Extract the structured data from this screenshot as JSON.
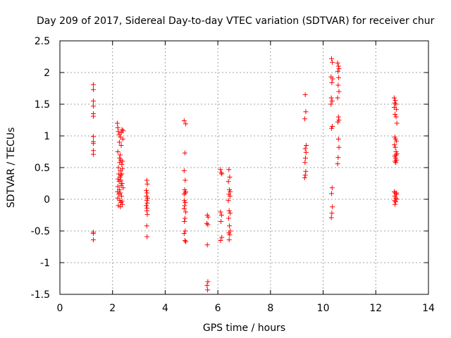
{
  "chart_data": {
    "type": "scatter",
    "title": "Day 209 of 2017, Sidereal Day-to-day VTEC variation (SDTVAR) for receiver chur",
    "xlabel": "GPS time / hours",
    "ylabel": "SDTVAR / TECUs",
    "xlim": [
      0,
      14
    ],
    "ylim": [
      -1.5,
      2.5
    ],
    "x_ticks": [
      0,
      2,
      4,
      6,
      8,
      10,
      12,
      14
    ],
    "y_ticks": [
      -1.5,
      -1,
      -0.5,
      0,
      0.5,
      1,
      1.5,
      2,
      2.5
    ],
    "x_tick_labels": [
      "0",
      "2",
      "4",
      "6",
      "8",
      "10",
      "12",
      "14"
    ],
    "y_tick_labels": [
      "-1.5",
      "-1",
      "-0.5",
      "0",
      "0.5",
      "1",
      "1.5",
      "2",
      "2.5"
    ],
    "grid": true,
    "marker": "+",
    "marker_color": "#ff0000",
    "series": [
      {
        "name": "SDTVAR",
        "points": [
          [
            1.27,
            1.81
          ],
          [
            1.27,
            1.73
          ],
          [
            1.27,
            1.55
          ],
          [
            1.27,
            1.47
          ],
          [
            1.27,
            1.35
          ],
          [
            1.27,
            1.31
          ],
          [
            1.27,
            0.99
          ],
          [
            1.27,
            0.91
          ],
          [
            1.27,
            0.88
          ],
          [
            1.27,
            0.77
          ],
          [
            1.27,
            0.71
          ],
          [
            1.27,
            -0.52
          ],
          [
            1.27,
            -0.54
          ],
          [
            1.27,
            -0.64
          ],
          [
            2.18,
            1.2
          ],
          [
            2.2,
            1.13
          ],
          [
            2.22,
            1.07
          ],
          [
            2.25,
            1.02
          ],
          [
            2.3,
            0.98
          ],
          [
            2.33,
            1.05
          ],
          [
            2.36,
            1.1
          ],
          [
            2.4,
            1.08
          ],
          [
            2.26,
            0.9
          ],
          [
            2.33,
            0.85
          ],
          [
            2.2,
            0.75
          ],
          [
            2.27,
            0.65
          ],
          [
            2.31,
            0.62
          ],
          [
            2.35,
            0.55
          ],
          [
            2.22,
            0.5
          ],
          [
            2.3,
            0.45
          ],
          [
            2.37,
            0.48
          ],
          [
            2.24,
            0.4
          ],
          [
            2.28,
            0.35
          ],
          [
            2.32,
            0.3
          ],
          [
            2.36,
            0.25
          ],
          [
            2.2,
            0.2
          ],
          [
            2.26,
            0.15
          ],
          [
            2.3,
            0.1
          ],
          [
            2.34,
            0.05
          ],
          [
            2.2,
            0.02
          ],
          [
            2.27,
            -0.02
          ],
          [
            2.32,
            -0.05
          ],
          [
            2.37,
            -0.08
          ],
          [
            2.22,
            -0.1
          ],
          [
            2.3,
            -0.12
          ],
          [
            2.35,
            0.4
          ],
          [
            2.38,
            0.6
          ],
          [
            2.25,
            0.28
          ],
          [
            2.4,
            0.18
          ],
          [
            2.21,
            0.32
          ],
          [
            2.29,
            0.7
          ],
          [
            2.33,
            0.22
          ],
          [
            2.24,
            0.08
          ],
          [
            2.36,
            -0.03
          ],
          [
            2.19,
            0.12
          ],
          [
            2.31,
            0.38
          ],
          [
            2.27,
            0.58
          ],
          [
            2.39,
            0.95
          ],
          [
            3.3,
            0.3
          ],
          [
            3.32,
            0.24
          ],
          [
            3.28,
            0.14
          ],
          [
            3.31,
            0.1
          ],
          [
            3.29,
            0.05
          ],
          [
            3.33,
            0.02
          ],
          [
            3.3,
            -0.02
          ],
          [
            3.32,
            -0.06
          ],
          [
            3.28,
            -0.1
          ],
          [
            3.31,
            -0.14
          ],
          [
            3.3,
            -0.18
          ],
          [
            3.32,
            -0.24
          ],
          [
            3.3,
            -0.42
          ],
          [
            3.31,
            -0.59
          ],
          [
            4.72,
            1.24
          ],
          [
            4.78,
            1.19
          ],
          [
            4.75,
            0.73
          ],
          [
            4.72,
            0.45
          ],
          [
            4.76,
            0.3
          ],
          [
            4.74,
            0.15
          ],
          [
            4.78,
            0.12
          ],
          [
            4.72,
            0.08
          ],
          [
            4.77,
            0.1
          ],
          [
            4.73,
            -0.02
          ],
          [
            4.76,
            -0.05
          ],
          [
            4.74,
            -0.1
          ],
          [
            4.72,
            -0.15
          ],
          [
            4.78,
            -0.2
          ],
          [
            4.75,
            -0.3
          ],
          [
            4.73,
            -0.35
          ],
          [
            4.76,
            -0.5
          ],
          [
            4.72,
            -0.54
          ],
          [
            4.75,
            -0.65
          ],
          [
            4.78,
            -0.67
          ],
          [
            5.6,
            -0.25
          ],
          [
            5.63,
            -0.28
          ],
          [
            5.58,
            -0.38
          ],
          [
            5.62,
            -0.4
          ],
          [
            5.6,
            -0.72
          ],
          [
            5.62,
            -1.3
          ],
          [
            5.59,
            -1.36
          ],
          [
            5.61,
            -1.43
          ],
          [
            6.1,
            0.47
          ],
          [
            6.13,
            0.42
          ],
          [
            6.15,
            0.4
          ],
          [
            6.1,
            -0.2
          ],
          [
            6.14,
            -0.25
          ],
          [
            6.12,
            -0.35
          ],
          [
            6.15,
            -0.6
          ],
          [
            6.1,
            -0.65
          ],
          [
            6.42,
            0.47
          ],
          [
            6.45,
            0.35
          ],
          [
            6.4,
            0.28
          ],
          [
            6.44,
            0.15
          ],
          [
            6.47,
            0.12
          ],
          [
            6.42,
            0.08
          ],
          [
            6.46,
            0.05
          ],
          [
            6.4,
            -0.02
          ],
          [
            6.43,
            -0.18
          ],
          [
            6.47,
            -0.22
          ],
          [
            6.41,
            -0.3
          ],
          [
            6.44,
            -0.42
          ],
          [
            6.47,
            -0.5
          ],
          [
            6.42,
            -0.53
          ],
          [
            6.45,
            -0.56
          ],
          [
            6.43,
            -0.64
          ],
          [
            9.32,
            1.65
          ],
          [
            9.34,
            1.38
          ],
          [
            9.3,
            1.27
          ],
          [
            9.36,
            0.85
          ],
          [
            9.32,
            0.8
          ],
          [
            9.35,
            0.74
          ],
          [
            9.33,
            0.65
          ],
          [
            9.31,
            0.58
          ],
          [
            9.34,
            0.44
          ],
          [
            9.32,
            0.38
          ],
          [
            9.3,
            0.34
          ],
          [
            10.32,
            2.22
          ],
          [
            10.35,
            2.16
          ],
          [
            10.3,
            1.93
          ],
          [
            10.36,
            1.9
          ],
          [
            10.33,
            1.84
          ],
          [
            10.31,
            1.6
          ],
          [
            10.34,
            1.55
          ],
          [
            10.3,
            1.5
          ],
          [
            10.35,
            1.15
          ],
          [
            10.32,
            1.12
          ],
          [
            10.34,
            0.18
          ],
          [
            10.32,
            0.09
          ],
          [
            10.35,
            -0.12
          ],
          [
            10.33,
            -0.22
          ],
          [
            10.31,
            -0.29
          ],
          [
            10.55,
            2.15
          ],
          [
            10.58,
            2.1
          ],
          [
            10.6,
            2.06
          ],
          [
            10.56,
            2.02
          ],
          [
            10.59,
            1.92
          ],
          [
            10.57,
            1.8
          ],
          [
            10.6,
            1.7
          ],
          [
            10.55,
            1.6
          ],
          [
            10.58,
            1.3
          ],
          [
            10.6,
            1.25
          ],
          [
            10.56,
            1.22
          ],
          [
            10.58,
            0.95
          ],
          [
            10.6,
            0.82
          ],
          [
            10.57,
            0.66
          ],
          [
            10.55,
            0.56
          ],
          [
            12.7,
            1.6
          ],
          [
            12.74,
            1.56
          ],
          [
            12.72,
            1.52
          ],
          [
            12.76,
            1.5
          ],
          [
            12.7,
            1.45
          ],
          [
            12.78,
            1.42
          ],
          [
            12.73,
            1.34
          ],
          [
            12.77,
            1.3
          ],
          [
            12.8,
            1.2
          ],
          [
            12.72,
            0.98
          ],
          [
            12.75,
            0.95
          ],
          [
            12.78,
            0.92
          ],
          [
            12.71,
            0.86
          ],
          [
            12.74,
            0.82
          ],
          [
            12.77,
            0.75
          ],
          [
            12.8,
            0.72
          ],
          [
            12.72,
            0.68
          ],
          [
            12.75,
            0.65
          ],
          [
            12.79,
            0.62
          ],
          [
            12.73,
            0.6
          ],
          [
            12.76,
            0.58
          ],
          [
            12.7,
            0.12
          ],
          [
            12.74,
            0.1
          ],
          [
            12.78,
            0.08
          ],
          [
            12.72,
            0.05
          ],
          [
            12.76,
            0.02
          ],
          [
            12.8,
            0.0
          ],
          [
            12.71,
            -0.02
          ],
          [
            12.75,
            -0.04
          ],
          [
            12.79,
            0.1
          ],
          [
            12.73,
            -0.08
          ],
          [
            12.77,
            0.7
          ]
        ]
      }
    ]
  }
}
